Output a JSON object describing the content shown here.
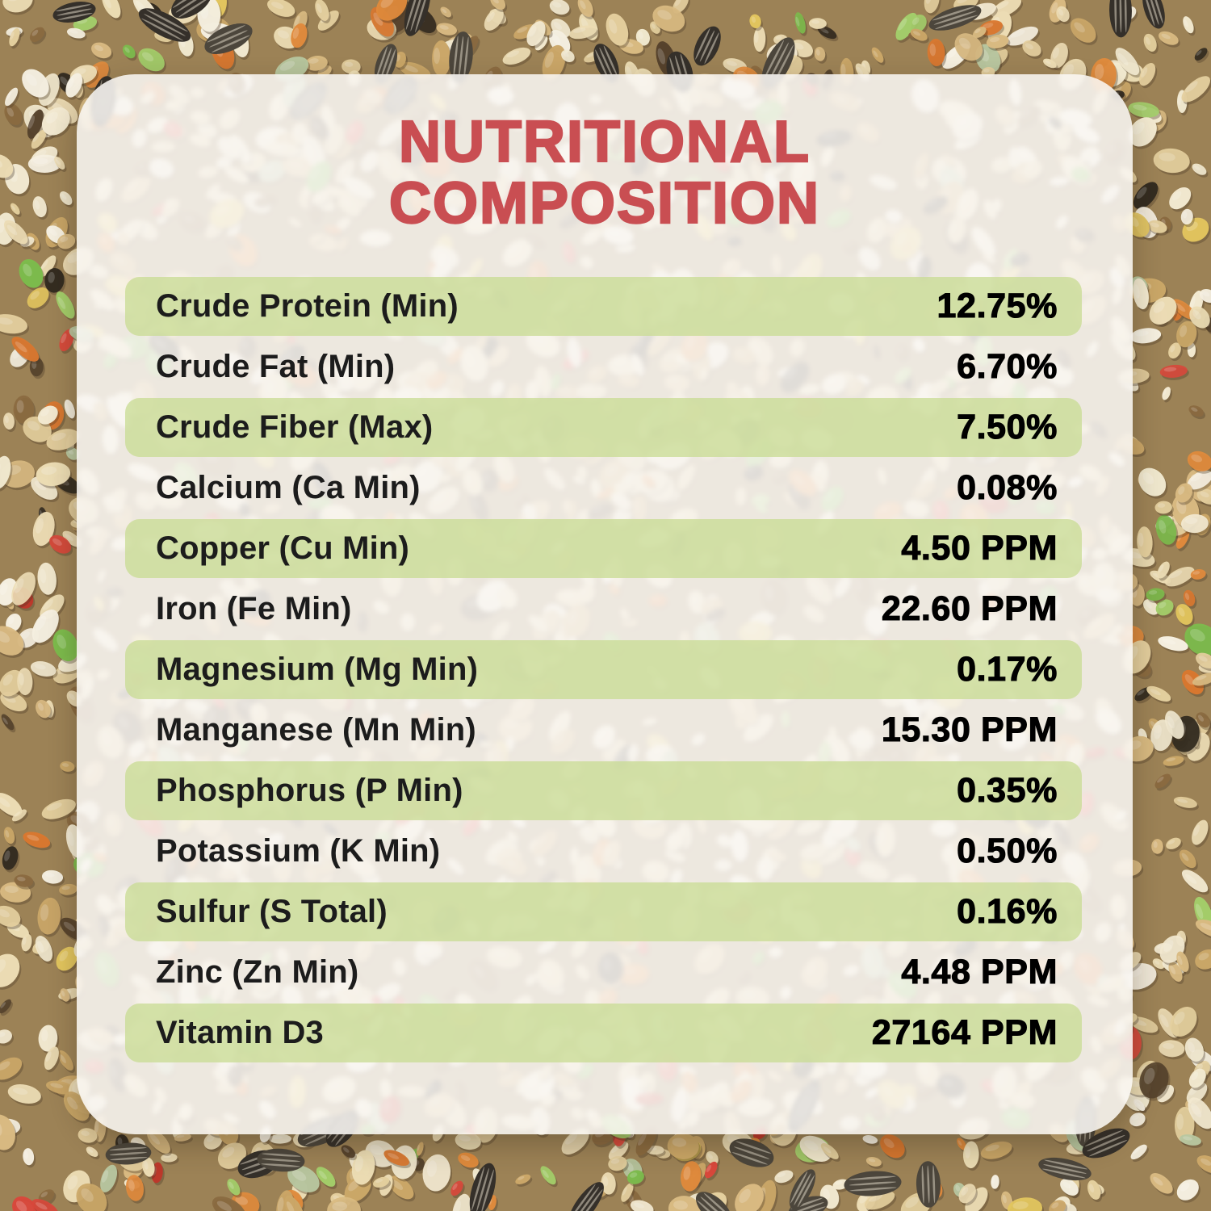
{
  "title": {
    "line1": "NUTRITIONAL",
    "line2": "COMPOSITION"
  },
  "colors": {
    "title_red": "#c94e52",
    "row_highlight_green": "#c9dc95",
    "card_background": "#f9f7f4",
    "label_text": "#1c1c1c",
    "value_text": "#000000"
  },
  "table": {
    "rows": [
      {
        "label": "Crude Protein (Min)",
        "value": "12.75%",
        "highlight": true
      },
      {
        "label": "Crude Fat (Min)",
        "value": "6.70%",
        "highlight": false
      },
      {
        "label": "Crude Fiber (Max)",
        "value": "7.50%",
        "highlight": true
      },
      {
        "label": "Calcium (Ca Min)",
        "value": "0.08%",
        "highlight": false
      },
      {
        "label": "Copper (Cu Min)",
        "value": "4.50 PPM",
        "highlight": true
      },
      {
        "label": "Iron (Fe Min)",
        "value": "22.60 PPM",
        "highlight": false
      },
      {
        "label": "Magnesium (Mg Min)",
        "value": "0.17%",
        "highlight": true
      },
      {
        "label": "Manganese (Mn Min)",
        "value": "15.30 PPM",
        "highlight": false
      },
      {
        "label": "Phosphorus (P Min)",
        "value": "0.35%",
        "highlight": true
      },
      {
        "label": "Potassium (K Min)",
        "value": "0.50%",
        "highlight": false
      },
      {
        "label": "Sulfur (S Total)",
        "value": "0.16%",
        "highlight": true
      },
      {
        "label": "Zinc (Zn Min)",
        "value": "4.48 PPM",
        "highlight": false
      },
      {
        "label": "Vitamin D3",
        "value": "27164 PPM",
        "highlight": true
      }
    ]
  }
}
